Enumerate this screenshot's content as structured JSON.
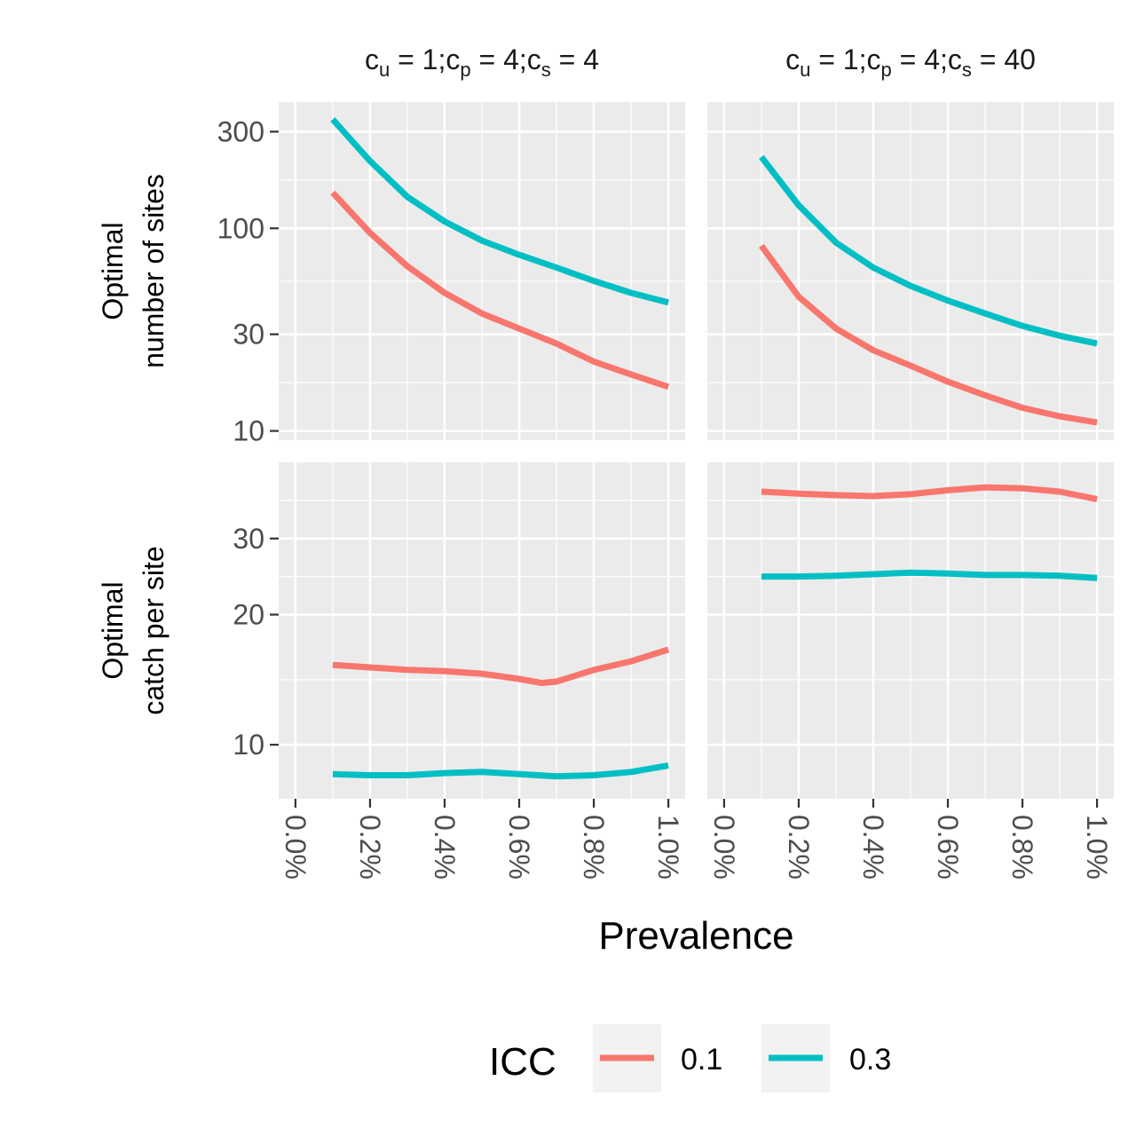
{
  "chart_data": {
    "type": "line",
    "xlabel": "Prevalence",
    "x_ticks": [
      "0.0%",
      "0.2%",
      "0.4%",
      "0.6%",
      "0.8%",
      "1.0%"
    ],
    "x_range": [
      0.0,
      1.0
    ],
    "facet_columns": [
      {
        "label_prefix": "c",
        "parts": [
          {
            "base": "c",
            "sub": "u",
            "rest": " = 1;"
          },
          {
            "base": "c",
            "sub": "p",
            "rest": " = 4;"
          },
          {
            "base": "c",
            "sub": "s",
            "rest": " = 4"
          }
        ]
      },
      {
        "label_prefix": "c",
        "parts": [
          {
            "base": "c",
            "sub": "u",
            "rest": " = 1;"
          },
          {
            "base": "c",
            "sub": "p",
            "rest": " = 4;"
          },
          {
            "base": "c",
            "sub": "s",
            "rest": " = 40"
          }
        ]
      }
    ],
    "facet_rows": [
      {
        "ylabel_line1": "Optimal",
        "ylabel_line2": "number of sites",
        "scale": "log",
        "ylim": [
          9,
          420
        ],
        "y_ticks": [
          10,
          30,
          100,
          300
        ],
        "y_tick_labels": [
          "10",
          "30",
          "100",
          "300"
        ]
      },
      {
        "ylabel_line1": "Optimal",
        "ylabel_line2": "catch per site",
        "scale": "log",
        "ylim": [
          7.5,
          45
        ],
        "y_ticks": [
          10,
          20,
          30
        ],
        "y_tick_labels": [
          "10",
          "20",
          "30"
        ]
      }
    ],
    "legend": {
      "title": "ICC",
      "placement": "bottom",
      "entries": [
        {
          "label": "0.1",
          "color": "#F8766D"
        },
        {
          "label": "0.3",
          "color": "#00BFC4"
        }
      ]
    },
    "panels": [
      {
        "row": 0,
        "col": 0,
        "series": [
          {
            "icc": "0.1",
            "x": [
              0.1,
              0.2,
              0.3,
              0.4,
              0.5,
              0.6,
              0.7,
              0.8,
              0.9,
              1.0
            ],
            "y": [
              150,
              95,
              65,
              48,
              38,
              32,
              27,
              22,
              19,
              16.5
            ]
          },
          {
            "icc": "0.3",
            "x": [
              0.1,
              0.2,
              0.3,
              0.4,
              0.5,
              0.6,
              0.7,
              0.8,
              0.9,
              1.0
            ],
            "y": [
              345,
              215,
              143,
              108,
              87,
              74,
              64,
              55,
              48,
              43
            ]
          }
        ]
      },
      {
        "row": 0,
        "col": 1,
        "series": [
          {
            "icc": "0.1",
            "x": [
              0.1,
              0.2,
              0.3,
              0.4,
              0.5,
              0.6,
              0.7,
              0.8,
              0.9,
              1.0
            ],
            "y": [
              82,
              46,
              32,
              25,
              21,
              17.5,
              15,
              13,
              11.8,
              11
            ]
          },
          {
            "icc": "0.3",
            "x": [
              0.1,
              0.2,
              0.3,
              0.4,
              0.5,
              0.6,
              0.7,
              0.8,
              0.9,
              1.0
            ],
            "y": [
              225,
              130,
              85,
              64,
              52,
              44,
              38,
              33,
              29.5,
              27
            ]
          }
        ]
      },
      {
        "row": 1,
        "col": 0,
        "series": [
          {
            "icc": "0.1",
            "x": [
              0.1,
              0.2,
              0.3,
              0.4,
              0.5,
              0.6,
              0.66,
              0.7,
              0.8,
              0.9,
              1.0
            ],
            "y": [
              15.3,
              15.1,
              14.9,
              14.8,
              14.6,
              14.2,
              13.9,
              14.0,
              14.9,
              15.6,
              16.6
            ]
          },
          {
            "icc": "0.3",
            "x": [
              0.1,
              0.2,
              0.3,
              0.4,
              0.5,
              0.6,
              0.7,
              0.8,
              0.9,
              1.0
            ],
            "y": [
              8.55,
              8.5,
              8.5,
              8.6,
              8.65,
              8.55,
              8.45,
              8.5,
              8.65,
              8.95
            ]
          }
        ]
      },
      {
        "row": 1,
        "col": 1,
        "series": [
          {
            "icc": "0.1",
            "x": [
              0.1,
              0.2,
              0.3,
              0.4,
              0.5,
              0.6,
              0.7,
              0.8,
              0.9,
              1.0
            ],
            "y": [
              38.5,
              38.1,
              37.8,
              37.6,
              38.0,
              38.8,
              39.4,
              39.2,
              38.5,
              37.0
            ]
          },
          {
            "icc": "0.3",
            "x": [
              0.1,
              0.2,
              0.3,
              0.4,
              0.5,
              0.6,
              0.7,
              0.8,
              0.9,
              1.0
            ],
            "y": [
              24.5,
              24.5,
              24.6,
              24.8,
              25.0,
              24.9,
              24.7,
              24.7,
              24.6,
              24.3
            ]
          }
        ]
      }
    ]
  }
}
